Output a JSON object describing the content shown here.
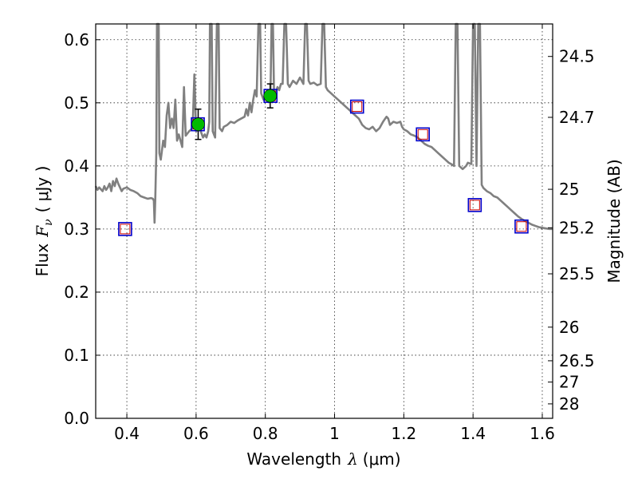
{
  "chart_data": {
    "type": "scatter",
    "title": "",
    "xlabel_prefix": "Wavelength",
    "xlabel_symbol": "λ",
    "xlabel_unit": "(μm)",
    "ylabel_prefix": "Flux",
    "ylabel_symbol": "F",
    "ylabel_subscript": "ν",
    "ylabel_unit": "( μJy )",
    "y2label": "Magnitude (AB)",
    "xlim": [
      0.31,
      1.63
    ],
    "ylim": [
      0.0,
      0.625
    ],
    "grid": true,
    "x_ticks": [
      0.4,
      0.6,
      0.8,
      1.0,
      1.2,
      1.4,
      1.6
    ],
    "x_tick_labels": [
      "0.4",
      "0.6",
      "0.8",
      "1",
      "1.2",
      "1.4",
      "1.6"
    ],
    "y_ticks": [
      0.0,
      0.1,
      0.2,
      0.3,
      0.4,
      0.5,
      0.6
    ],
    "y_tick_labels": [
      "0.0",
      "0.1",
      "0.2",
      "0.3",
      "0.4",
      "0.5",
      "0.6"
    ],
    "y2_ticks": [
      {
        "label": "24.5",
        "flux": 0.5735
      },
      {
        "label": "24.7",
        "flux": 0.477
      },
      {
        "label": "25",
        "flux": 0.363
      },
      {
        "label": "25.2",
        "flux": 0.302
      },
      {
        "label": "25.5",
        "flux": 0.229
      },
      {
        "label": "26",
        "flux": 0.1445
      },
      {
        "label": "26.5",
        "flux": 0.0912
      },
      {
        "label": "27",
        "flux": 0.0575
      },
      {
        "label": "28",
        "flux": 0.0229
      }
    ],
    "colors": {
      "spectrum": "#808080",
      "square_outer": "#0000cc",
      "square_inner": "#cc0000",
      "detection": "#00bb00",
      "errorbar": "#000000"
    },
    "series": [
      {
        "name": "model-spectrum",
        "kind": "line",
        "points": [
          [
            0.31,
            0.368
          ],
          [
            0.315,
            0.362
          ],
          [
            0.32,
            0.366
          ],
          [
            0.33,
            0.36
          ],
          [
            0.335,
            0.368
          ],
          [
            0.34,
            0.362
          ],
          [
            0.345,
            0.366
          ],
          [
            0.35,
            0.372
          ],
          [
            0.355,
            0.36
          ],
          [
            0.36,
            0.376
          ],
          [
            0.365,
            0.368
          ],
          [
            0.37,
            0.38
          ],
          [
            0.375,
            0.372
          ],
          [
            0.38,
            0.366
          ],
          [
            0.385,
            0.36
          ],
          [
            0.39,
            0.364
          ],
          [
            0.4,
            0.366
          ],
          [
            0.41,
            0.362
          ],
          [
            0.42,
            0.36
          ],
          [
            0.43,
            0.357
          ],
          [
            0.44,
            0.352
          ],
          [
            0.45,
            0.35
          ],
          [
            0.46,
            0.348
          ],
          [
            0.47,
            0.349
          ],
          [
            0.475,
            0.348
          ],
          [
            0.478,
            0.345
          ],
          [
            0.48,
            0.31
          ],
          [
            0.482,
            0.345
          ],
          [
            0.485,
            0.42
          ],
          [
            0.487,
            0.626
          ],
          [
            0.492,
            0.626
          ],
          [
            0.494,
            0.42
          ],
          [
            0.498,
            0.41
          ],
          [
            0.505,
            0.44
          ],
          [
            0.51,
            0.43
          ],
          [
            0.515,
            0.48
          ],
          [
            0.52,
            0.5
          ],
          [
            0.525,
            0.46
          ],
          [
            0.53,
            0.475
          ],
          [
            0.535,
            0.46
          ],
          [
            0.54,
            0.505
          ],
          [
            0.545,
            0.44
          ],
          [
            0.55,
            0.45
          ],
          [
            0.56,
            0.43
          ],
          [
            0.565,
            0.525
          ],
          [
            0.57,
            0.448
          ],
          [
            0.58,
            0.455
          ],
          [
            0.59,
            0.46
          ],
          [
            0.595,
            0.545
          ],
          [
            0.6,
            0.455
          ],
          [
            0.61,
            0.46
          ],
          [
            0.62,
            0.445
          ],
          [
            0.625,
            0.45
          ],
          [
            0.63,
            0.445
          ],
          [
            0.635,
            0.455
          ],
          [
            0.638,
            0.47
          ],
          [
            0.64,
            0.626
          ],
          [
            0.645,
            0.626
          ],
          [
            0.648,
            0.455
          ],
          [
            0.655,
            0.445
          ],
          [
            0.66,
            0.626
          ],
          [
            0.665,
            0.626
          ],
          [
            0.668,
            0.46
          ],
          [
            0.675,
            0.455
          ],
          [
            0.68,
            0.462
          ],
          [
            0.69,
            0.465
          ],
          [
            0.7,
            0.47
          ],
          [
            0.71,
            0.468
          ],
          [
            0.72,
            0.472
          ],
          [
            0.73,
            0.475
          ],
          [
            0.74,
            0.478
          ],
          [
            0.745,
            0.49
          ],
          [
            0.75,
            0.48
          ],
          [
            0.755,
            0.5
          ],
          [
            0.76,
            0.485
          ],
          [
            0.765,
            0.505
          ],
          [
            0.77,
            0.52
          ],
          [
            0.775,
            0.51
          ],
          [
            0.78,
            0.626
          ],
          [
            0.785,
            0.626
          ],
          [
            0.788,
            0.515
          ],
          [
            0.795,
            0.505
          ],
          [
            0.8,
            0.515
          ],
          [
            0.81,
            0.505
          ],
          [
            0.815,
            0.52
          ],
          [
            0.818,
            0.626
          ],
          [
            0.822,
            0.626
          ],
          [
            0.825,
            0.52
          ],
          [
            0.83,
            0.515
          ],
          [
            0.835,
            0.525
          ],
          [
            0.84,
            0.52
          ],
          [
            0.845,
            0.53
          ],
          [
            0.85,
            0.53
          ],
          [
            0.855,
            0.626
          ],
          [
            0.86,
            0.626
          ],
          [
            0.865,
            0.53
          ],
          [
            0.87,
            0.525
          ],
          [
            0.88,
            0.535
          ],
          [
            0.89,
            0.53
          ],
          [
            0.9,
            0.54
          ],
          [
            0.91,
            0.53
          ],
          [
            0.915,
            0.626
          ],
          [
            0.92,
            0.626
          ],
          [
            0.925,
            0.535
          ],
          [
            0.93,
            0.53
          ],
          [
            0.94,
            0.532
          ],
          [
            0.95,
            0.528
          ],
          [
            0.96,
            0.53
          ],
          [
            0.965,
            0.626
          ],
          [
            0.97,
            0.626
          ],
          [
            0.975,
            0.525
          ],
          [
            0.98,
            0.52
          ],
          [
            0.99,
            0.515
          ],
          [
            1.0,
            0.51
          ],
          [
            1.01,
            0.505
          ],
          [
            1.02,
            0.5
          ],
          [
            1.03,
            0.495
          ],
          [
            1.04,
            0.49
          ],
          [
            1.05,
            0.485
          ],
          [
            1.06,
            0.48
          ],
          [
            1.07,
            0.475
          ],
          [
            1.08,
            0.465
          ],
          [
            1.09,
            0.46
          ],
          [
            1.1,
            0.458
          ],
          [
            1.11,
            0.462
          ],
          [
            1.12,
            0.455
          ],
          [
            1.13,
            0.46
          ],
          [
            1.14,
            0.47
          ],
          [
            1.15,
            0.478
          ],
          [
            1.155,
            0.475
          ],
          [
            1.16,
            0.465
          ],
          [
            1.17,
            0.47
          ],
          [
            1.18,
            0.468
          ],
          [
            1.19,
            0.47
          ],
          [
            1.195,
            0.462
          ],
          [
            1.2,
            0.458
          ],
          [
            1.21,
            0.455
          ],
          [
            1.22,
            0.45
          ],
          [
            1.23,
            0.448
          ],
          [
            1.24,
            0.445
          ],
          [
            1.25,
            0.44
          ],
          [
            1.26,
            0.435
          ],
          [
            1.27,
            0.432
          ],
          [
            1.28,
            0.43
          ],
          [
            1.29,
            0.425
          ],
          [
            1.3,
            0.42
          ],
          [
            1.31,
            0.415
          ],
          [
            1.32,
            0.41
          ],
          [
            1.33,
            0.405
          ],
          [
            1.34,
            0.402
          ],
          [
            1.345,
            0.4
          ],
          [
            1.35,
            0.626
          ],
          [
            1.355,
            0.626
          ],
          [
            1.36,
            0.4
          ],
          [
            1.37,
            0.395
          ],
          [
            1.38,
            0.4
          ],
          [
            1.385,
            0.405
          ],
          [
            1.39,
            0.404
          ],
          [
            1.395,
            0.403
          ],
          [
            1.4,
            0.626
          ],
          [
            1.405,
            0.626
          ],
          [
            1.41,
            0.4
          ],
          [
            1.415,
            0.626
          ],
          [
            1.42,
            0.626
          ],
          [
            1.425,
            0.37
          ],
          [
            1.43,
            0.365
          ],
          [
            1.44,
            0.36
          ],
          [
            1.45,
            0.357
          ],
          [
            1.46,
            0.352
          ],
          [
            1.47,
            0.35
          ],
          [
            1.48,
            0.345
          ],
          [
            1.49,
            0.34
          ],
          [
            1.5,
            0.335
          ],
          [
            1.51,
            0.33
          ],
          [
            1.52,
            0.325
          ],
          [
            1.53,
            0.32
          ],
          [
            1.54,
            0.316
          ],
          [
            1.55,
            0.313
          ],
          [
            1.56,
            0.31
          ],
          [
            1.57,
            0.307
          ],
          [
            1.58,
            0.305
          ],
          [
            1.59,
            0.303
          ],
          [
            1.6,
            0.302
          ],
          [
            1.61,
            0.301
          ],
          [
            1.62,
            0.3
          ],
          [
            1.63,
            0.3
          ]
        ]
      },
      {
        "name": "model-photometry",
        "kind": "squares",
        "points": [
          [
            0.395,
            0.3
          ],
          [
            0.605,
            0.466
          ],
          [
            0.815,
            0.511
          ],
          [
            1.065,
            0.494
          ],
          [
            1.255,
            0.45
          ],
          [
            1.405,
            0.338
          ],
          [
            1.54,
            0.304
          ]
        ]
      },
      {
        "name": "detections",
        "kind": "points-with-errorbars",
        "points": [
          {
            "x": 0.606,
            "y": 0.466,
            "err": 0.024
          },
          {
            "x": 0.814,
            "y": 0.511,
            "err": 0.019
          }
        ]
      }
    ]
  }
}
